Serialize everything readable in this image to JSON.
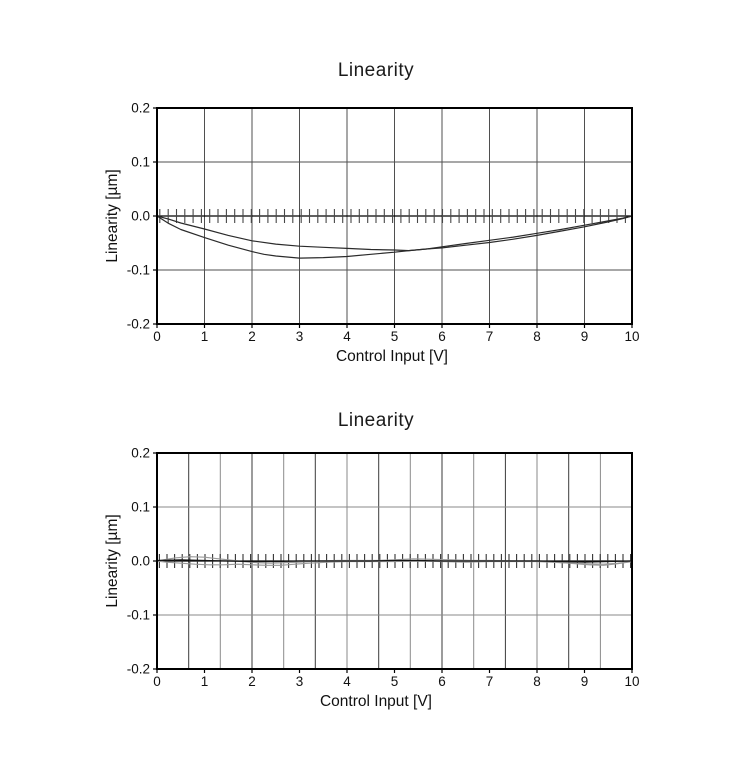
{
  "page": {
    "background": "#ffffff",
    "text_color": "#1a1a1a"
  },
  "chart_data": [
    {
      "type": "line",
      "title": "Linearity",
      "xlabel": "Control Input [V]",
      "ylabel": "Linearity [µm]",
      "xlim": [
        0,
        10
      ],
      "ylim": [
        -0.2,
        0.2
      ],
      "xticks": [
        0,
        1,
        2,
        3,
        4,
        5,
        6,
        7,
        8,
        9,
        10
      ],
      "yticks": [
        0.2,
        0.1,
        0.0,
        -0.1,
        -0.2
      ],
      "ytick_labels": [
        "0.2",
        "0.1",
        "0.0",
        "-0.1",
        "-0.2"
      ],
      "grid": {
        "x_interval": 1,
        "alternate": false,
        "color": "#4f4f4f",
        "strong_color": "#333333",
        "horizontal_on": true
      },
      "zero_line_color": "#000000",
      "markers": {
        "interval": 0.175,
        "start": 0.06,
        "half_um": 0.013,
        "color": "#474747",
        "note": "small vertical dashes marking measurement points along y=0"
      },
      "series": [
        {
          "name": "curve-upper-descending",
          "color": "#2b2b2b",
          "x": [
            0,
            0.25,
            0.5,
            1,
            1.5,
            2,
            2.5,
            3,
            3.5,
            4,
            4.5,
            5,
            5.3,
            5.7,
            6,
            6.5,
            7,
            7.5,
            8,
            8.5,
            9,
            9.5,
            9.8,
            10
          ],
          "y": [
            0,
            -0.006,
            -0.013,
            -0.024,
            -0.036,
            -0.046,
            -0.052,
            -0.056,
            -0.058,
            -0.06,
            -0.062,
            -0.063,
            -0.064,
            -0.061,
            -0.057,
            -0.051,
            -0.045,
            -0.039,
            -0.032,
            -0.025,
            -0.017,
            -0.009,
            -0.004,
            0
          ]
        },
        {
          "name": "curve-lower-ascending",
          "color": "#2b2b2b",
          "x": [
            0,
            0.25,
            0.5,
            1,
            1.5,
            2,
            2.25,
            2.5,
            3,
            3.5,
            4,
            4.5,
            5,
            5.3,
            5.7,
            6,
            6.5,
            7,
            7.5,
            8,
            8.5,
            9,
            9.5,
            9.8,
            10
          ],
          "y": [
            0,
            -0.014,
            -0.025,
            -0.04,
            -0.054,
            -0.066,
            -0.071,
            -0.074,
            -0.078,
            -0.077,
            -0.075,
            -0.071,
            -0.067,
            -0.064,
            -0.061,
            -0.059,
            -0.054,
            -0.049,
            -0.043,
            -0.036,
            -0.028,
            -0.02,
            -0.011,
            -0.005,
            0
          ]
        }
      ]
    },
    {
      "type": "line",
      "title": "Linearity",
      "xlabel": "Control Input [V]",
      "ylabel": "Linearity [µm]",
      "xlim": [
        0,
        10
      ],
      "ylim": [
        -0.2,
        0.2
      ],
      "xticks": [
        0,
        1,
        2,
        3,
        4,
        5,
        6,
        7,
        8,
        9,
        10
      ],
      "yticks": [
        0.2,
        0.1,
        0.0,
        -0.1,
        -0.2
      ],
      "ytick_labels": [
        "0.2",
        "0.1",
        "0.0",
        "-0.1",
        "-0.2"
      ],
      "grid": {
        "x_interval": 0.6667,
        "alternate": true,
        "color": "#8a8a8a",
        "strong_color": "#3a3a3a",
        "horizontal_on": true
      },
      "zero_line_color": "#000000",
      "markers": {
        "interval": 0.16,
        "start": 0.05,
        "half_um": 0.013,
        "color": "#333333",
        "note": "small vertical dashes marking measurement points along y=0"
      },
      "series": [
        {
          "name": "curve-gray-upper-loop",
          "color": "#9a9a9a",
          "x": [
            0,
            0.2,
            0.4,
            0.7,
            1,
            1.2,
            1.5,
            1.8,
            2.1,
            2.4,
            2.7,
            3,
            3.4,
            3.8,
            4.2,
            4.6,
            5,
            5.4,
            5.8,
            6.2,
            6.6,
            7,
            7.5,
            8,
            8.4,
            8.8,
            9.1,
            9.4,
            9.7,
            10
          ],
          "y": [
            0,
            0.003,
            0.006,
            0.008,
            0.007,
            0.005,
            0.002,
            -0.001,
            -0.003,
            -0.004,
            -0.003,
            -0.002,
            0,
            0.001,
            0.001,
            0.001,
            0.002,
            0.004,
            0.003,
            0.002,
            0.001,
            0.001,
            0,
            0,
            -0.002,
            -0.005,
            -0.007,
            -0.008,
            -0.005,
            -0.001
          ]
        },
        {
          "name": "curve-gray-lower-loop",
          "color": "#9a9a9a",
          "x": [
            0,
            0.2,
            0.5,
            0.8,
            1.1,
            1.4,
            1.7,
            2,
            2.3,
            2.6,
            2.9,
            3.2,
            3.6,
            4,
            4.5,
            5,
            5.5,
            6,
            6.5,
            7,
            7.5,
            8,
            8.5,
            9,
            9.4,
            9.7,
            10
          ],
          "y": [
            0,
            -0.002,
            -0.004,
            -0.006,
            -0.007,
            -0.007,
            -0.006,
            -0.007,
            -0.008,
            -0.008,
            -0.006,
            -0.004,
            -0.002,
            -0.001,
            -0.001,
            -0.001,
            0,
            -0.001,
            -0.002,
            -0.001,
            -0.001,
            -0.001,
            -0.003,
            -0.005,
            -0.006,
            -0.004,
            -0.001
          ]
        },
        {
          "name": "curve-black-near-zero",
          "color": "#141414",
          "x": [
            0,
            0.5,
            1,
            1.5,
            2,
            2.5,
            3,
            3.5,
            4,
            4.5,
            5,
            5.5,
            6,
            6.5,
            7,
            7.5,
            8,
            8.5,
            9,
            9.5,
            10
          ],
          "y": [
            0.001,
            0.002,
            0.001,
            0,
            -0.001,
            -0.001,
            0,
            0,
            0,
            0,
            0.001,
            0.001,
            0,
            0,
            0,
            0,
            0,
            -0.001,
            -0.002,
            -0.001,
            0
          ]
        }
      ]
    }
  ]
}
